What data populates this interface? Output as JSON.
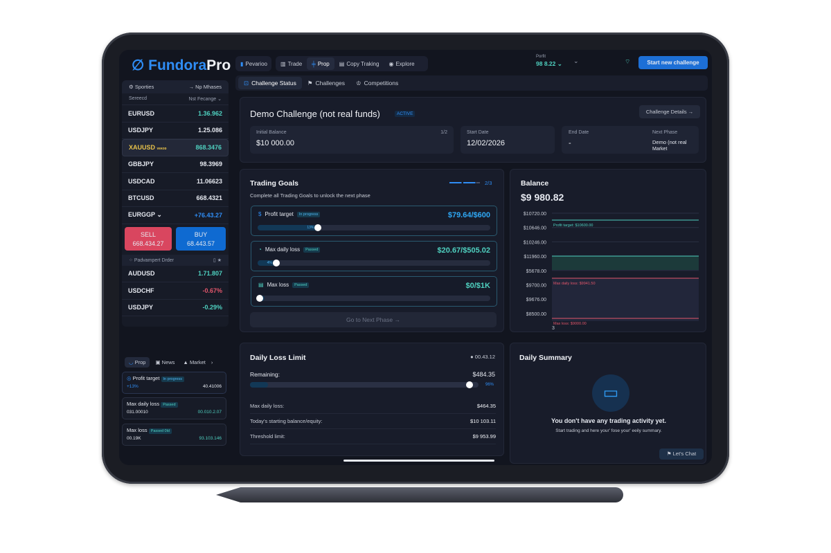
{
  "app": {
    "logo_a": "Fundora",
    "logo_b": "Pro"
  },
  "nav": {
    "items": [
      "Pevarioo",
      "Trade",
      "Prop",
      "Copy Traking",
      "Explore"
    ],
    "active": "Prop",
    "profit_label": "Porfit",
    "profit_value": "98 8.22",
    "start_button": "Start new challenge"
  },
  "subnav": {
    "items": [
      "Challenge Status",
      "Challenges",
      "Competitions"
    ],
    "active": "Challenge Status"
  },
  "sidebar": {
    "tab_a": "Sporties",
    "tab_b": "Np Mhases",
    "filter_label": "Sereecd",
    "filter_value": "Nst Fecange",
    "symbols": [
      {
        "name": "EURUSD",
        "value": "1.36.962",
        "color": "g"
      },
      {
        "name": "USDJPY",
        "value": "1.25.086",
        "color": "w"
      },
      {
        "name": "XAUUSD",
        "badge": "ᴠᴇᴋᴏᴅ",
        "value": "868.3476",
        "color": "g",
        "highlight": true
      },
      {
        "name": "GBBJPY",
        "value": "98.3969",
        "color": "w"
      },
      {
        "name": "USDCAD",
        "value": "11.06623",
        "color": "w"
      },
      {
        "name": "BTCUSD",
        "value": "668.4321",
        "color": "w"
      },
      {
        "name": "EURGGP",
        "value": "+76.43.27",
        "color": "m"
      }
    ],
    "sell_label": "SELL",
    "sell_price": "668.434.27",
    "buy_label": "BUY",
    "buy_price": "68.443.57",
    "advanced_order": "Padvampert Drder",
    "symbols2": [
      {
        "name": "AUDUSD",
        "value": "1.71.807",
        "color": "g"
      },
      {
        "name": "USDCHF",
        "value": "-0.67%",
        "color": "r"
      },
      {
        "name": "USDJPY",
        "value": "-0.29%",
        "color": "g"
      }
    ],
    "bottom_tabs": [
      "Prop",
      "News",
      "Market"
    ],
    "mini_goals": [
      {
        "title": "Profit target",
        "badge": "In progress",
        "left": "40.41006",
        "pct": "+13%"
      },
      {
        "title": "Max daily loss",
        "badge": "Passed",
        "left": "031.00010",
        "right": "00.010.2.07"
      },
      {
        "title": "Max loss",
        "badge": "Passed 0ld",
        "left": "00.19K",
        "right": "93.103.146"
      }
    ]
  },
  "challenge": {
    "title": "Demo Challenge (not real funds)",
    "status": "ACTIVE",
    "details_button": "Challenge Details →",
    "initial_label": "Initial Balance",
    "initial_value": "$10 000.00",
    "phase_count": "1/2",
    "start_label": "Start Date",
    "start_value": "12/02/2026",
    "end_label": "End Date",
    "end_value": "-",
    "next_label": "Next Phase",
    "next_value": "Demo (not real",
    "next_value2": "Market"
  },
  "goals": {
    "title": "Trading Goals",
    "progress": "2/3",
    "subtitle": "Complete all Trading Goals to unlock the next phase",
    "button": "Go to Next Phase →",
    "items": [
      {
        "name": "Profit target",
        "badge": "In progress",
        "amount": "$79.64/$600",
        "percent": 13,
        "pct_label": "13%"
      },
      {
        "name": "Max daily loss",
        "badge": "Passed",
        "amount": "$20.67/$505.02",
        "percent": 4,
        "pct_label": "4%"
      },
      {
        "name": "Max loss",
        "badge": "Passed",
        "amount": "$0/$1K",
        "percent": 0,
        "pct_label": "0%"
      }
    ]
  },
  "balance": {
    "title": "Balance",
    "value": "$9 980.82"
  },
  "chart_data": {
    "type": "line",
    "ticks": [
      "$10720.00",
      "$10646.00",
      "$10246.00",
      "$11960.00",
      "$5678.00",
      "$9700.00",
      "$9676.00",
      "$8500.00"
    ],
    "x_ticks": [
      "3"
    ],
    "annotations": [
      {
        "label": "Profit target: $10600.00",
        "color": "#4fd1c0"
      },
      {
        "label": "Max daily loss: $9941.50",
        "color": "#e2566b"
      },
      {
        "label": "Max loss: $9000.00",
        "color": "#e2566b"
      }
    ],
    "grid": true
  },
  "daily_loss": {
    "title": "Daily Loss Limit",
    "timer": "00.43.12",
    "remaining_label": "Remaining:",
    "remaining_value": "$484.35",
    "percent": 96,
    "pct_label": "96%",
    "rows": [
      {
        "label": "Max daily loss:",
        "value": "$464.35"
      },
      {
        "label": "Today's starting balance/equity:",
        "value": "$10 103.11"
      },
      {
        "label": "Threshold limit:",
        "value": "$9 953.99"
      }
    ]
  },
  "summary": {
    "title": "Daily Summary",
    "empty_title": "You don't have any trading activity yet.",
    "empty_sub": "Start trading and here your' fose your' eeily summary.",
    "chat_button": "Let's Chat"
  },
  "colors": {
    "accent": "#2f8df5",
    "teal": "#4fd1c0",
    "red": "#e2566b",
    "bg": "#12151f"
  }
}
